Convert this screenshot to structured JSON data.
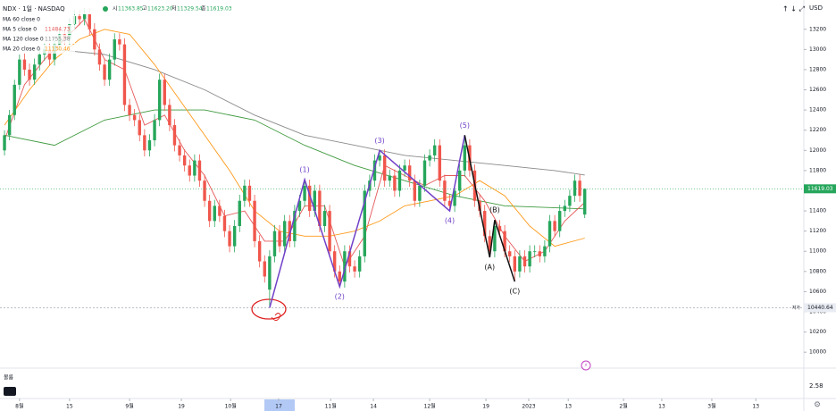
{
  "chart_data": {
    "type": "candlestick",
    "symbol": "NDX · 1일 · NASDAQ",
    "header_values": [
      "시",
      "11363.85",
      "고",
      "11623.20",
      "저",
      "11329.54",
      "종",
      "11619.03"
    ],
    "currency": "USD",
    "xlim": [
      -0.9,
      159.8
    ],
    "xticks": [
      {
        "value": 3,
        "label": "8월"
      },
      {
        "value": 13,
        "label": "15"
      },
      {
        "value": 25,
        "label": "9월"
      },
      {
        "value": 35.35,
        "label": "19"
      },
      {
        "value": 45.2,
        "label": "10월"
      },
      {
        "value": 54.8,
        "label": "17"
      },
      {
        "value": 65.2,
        "label": "11월"
      },
      {
        "value": 73.75,
        "label": "14"
      },
      {
        "value": 85,
        "label": "12월"
      },
      {
        "value": 96.25,
        "label": "19"
      },
      {
        "value": 104.8,
        "label": "2023"
      },
      {
        "value": 112.7,
        "label": "13"
      },
      {
        "value": 123.75,
        "label": "2월"
      },
      {
        "value": 131.4,
        "label": "13"
      },
      {
        "value": 141.4,
        "label": "3월"
      },
      {
        "value": 150.2,
        "label": "13"
      }
    ],
    "ylim": [
      9860,
      13490
    ],
    "yticks": [
      10000,
      10200,
      10400,
      10600,
      10800,
      11000,
      11200,
      11400,
      11600,
      11800,
      12000,
      12200,
      12400,
      12600,
      12800,
      13000,
      13200
    ],
    "grid": false,
    "up_color": "#26a65b",
    "down_color": "#f0564c",
    "ohlc": [
      [
        12000,
        12200,
        11950,
        12150
      ],
      [
        12150,
        12400,
        12100,
        12350
      ],
      [
        12350,
        12700,
        12300,
        12650
      ],
      [
        12650,
        12950,
        12600,
        12900
      ],
      [
        12900,
        12960,
        12740,
        12800
      ],
      [
        12800,
        12860,
        12640,
        12700
      ],
      [
        12700,
        12910,
        12650,
        12850
      ],
      [
        12850,
        13010,
        12790,
        12950
      ],
      [
        12950,
        13060,
        12890,
        13000
      ],
      [
        13000,
        13060,
        12840,
        12900
      ],
      [
        12900,
        13110,
        12840,
        13050
      ],
      [
        13050,
        13210,
        12990,
        13150
      ],
      [
        13150,
        13210,
        13040,
        13100
      ],
      [
        13100,
        13310,
        13040,
        13250
      ],
      [
        13250,
        13390,
        13190,
        13330
      ],
      [
        13330,
        13390,
        13240,
        13300
      ],
      [
        13300,
        13410,
        13240,
        13350
      ],
      [
        13350,
        13410,
        13140,
        13200
      ],
      [
        13200,
        13260,
        12940,
        13000
      ],
      [
        13000,
        13060,
        12790,
        12850
      ],
      [
        12850,
        12910,
        12640,
        12700
      ],
      [
        12700,
        12960,
        12640,
        12900
      ],
      [
        12900,
        13160,
        12840,
        13100
      ],
      [
        13100,
        13160,
        12990,
        13050
      ],
      [
        13050,
        13110,
        12390,
        12450
      ],
      [
        12450,
        12510,
        12290,
        12350
      ],
      [
        12350,
        12410,
        12240,
        12300
      ],
      [
        12300,
        12360,
        12090,
        12150
      ],
      [
        12150,
        12210,
        11940,
        12000
      ],
      [
        12000,
        12160,
        11940,
        12100
      ],
      [
        12100,
        12360,
        12040,
        12300
      ],
      [
        12300,
        12760,
        12240,
        12700
      ],
      [
        12700,
        12760,
        12390,
        12450
      ],
      [
        12450,
        12510,
        12190,
        12250
      ],
      [
        12250,
        12310,
        11990,
        12050
      ],
      [
        12050,
        12110,
        11890,
        11950
      ],
      [
        11950,
        12010,
        11790,
        11850
      ],
      [
        11850,
        11910,
        11690,
        11750
      ],
      [
        11750,
        11960,
        11690,
        11900
      ],
      [
        11900,
        11960,
        11640,
        11700
      ],
      [
        11700,
        11760,
        11440,
        11500
      ],
      [
        11500,
        11560,
        11240,
        11300
      ],
      [
        11300,
        11510,
        11240,
        11450
      ],
      [
        11450,
        11510,
        11290,
        11350
      ],
      [
        11350,
        11410,
        11140,
        11200
      ],
      [
        11200,
        11260,
        10990,
        11050
      ],
      [
        11050,
        11310,
        10990,
        11250
      ],
      [
        11250,
        11560,
        11190,
        11500
      ],
      [
        11500,
        11710,
        11440,
        11650
      ],
      [
        11650,
        11710,
        11440,
        11500
      ],
      [
        11500,
        11560,
        11040,
        11100
      ],
      [
        11100,
        11160,
        10840,
        10900
      ],
      [
        10900,
        10960,
        10690,
        10750
      ],
      [
        10620,
        11010,
        10440.64,
        10950
      ],
      [
        10950,
        11260,
        10890,
        11200
      ],
      [
        11200,
        11260,
        10990,
        11050
      ],
      [
        11050,
        11360,
        10990,
        11300
      ],
      [
        11300,
        11360,
        11040,
        11100
      ],
      [
        11100,
        11460,
        11040,
        11400
      ],
      [
        11400,
        11560,
        11340,
        11500
      ],
      [
        11500,
        11710,
        11440,
        11650
      ],
      [
        11650,
        11710,
        11340,
        11400
      ],
      [
        11400,
        11660,
        11340,
        11600
      ],
      [
        11600,
        11660,
        11190,
        11250
      ],
      [
        11250,
        11460,
        11190,
        11400
      ],
      [
        11400,
        11460,
        10940,
        11000
      ],
      [
        11000,
        11060,
        10740,
        10800
      ],
      [
        10800,
        10860,
        10650,
        10700
      ],
      [
        10700,
        11060,
        10640,
        11000
      ],
      [
        11000,
        11060,
        10790,
        10850
      ],
      [
        10850,
        10910,
        10740,
        10800
      ],
      [
        10800,
        11010,
        10740,
        10950
      ],
      [
        10950,
        11660,
        10890,
        11600
      ],
      [
        11600,
        11760,
        11540,
        11700
      ],
      [
        11700,
        11960,
        11640,
        11900
      ],
      [
        11900,
        12000,
        11840,
        11950
      ],
      [
        11950,
        12010,
        11640,
        11700
      ],
      [
        11700,
        11810,
        11640,
        11750
      ],
      [
        11750,
        11810,
        11540,
        11600
      ],
      [
        11600,
        11860,
        11540,
        11800
      ],
      [
        11800,
        11910,
        11740,
        11850
      ],
      [
        11850,
        11910,
        11640,
        11700
      ],
      [
        11700,
        11760,
        11440,
        11500
      ],
      [
        11500,
        11710,
        11440,
        11650
      ],
      [
        11650,
        11960,
        11590,
        11900
      ],
      [
        11900,
        12010,
        11840,
        11950
      ],
      [
        11950,
        12110,
        11890,
        12050
      ],
      [
        12050,
        12110,
        11640,
        11700
      ],
      [
        11700,
        11760,
        11440,
        11500
      ],
      [
        11500,
        11560,
        11400,
        11450
      ],
      [
        11450,
        11660,
        11390,
        11600
      ],
      [
        11600,
        11860,
        11540,
        11800
      ],
      [
        11800,
        12150,
        11740,
        12050
      ],
      [
        12050,
        12110,
        11740,
        11800
      ],
      [
        11800,
        11860,
        11440,
        11500
      ],
      [
        11500,
        11560,
        11340,
        11400
      ],
      [
        11400,
        11460,
        11090,
        11150
      ],
      [
        11150,
        11210,
        10940,
        11000
      ],
      [
        11000,
        11310,
        10940,
        11250
      ],
      [
        11250,
        11310,
        11140,
        11200
      ],
      [
        11200,
        11260,
        10940,
        11000
      ],
      [
        11000,
        11060,
        10890,
        10950
      ],
      [
        10950,
        11010,
        10700,
        10800
      ],
      [
        10800,
        11010,
        10740,
        10950
      ],
      [
        10950,
        11010,
        10790,
        10850
      ],
      [
        10850,
        11060,
        10790,
        11000
      ],
      [
        11000,
        11060,
        10940,
        11000
      ],
      [
        11000,
        11060,
        10890,
        10950
      ],
      [
        10950,
        11110,
        10890,
        11050
      ],
      [
        11050,
        11360,
        10990,
        11300
      ],
      [
        11300,
        11360,
        11140,
        11200
      ],
      [
        11200,
        11460,
        11140,
        11400
      ],
      [
        11400,
        11510,
        11340,
        11450
      ],
      [
        11450,
        11610,
        11390,
        11550
      ],
      [
        11550,
        11760,
        11490,
        11700
      ],
      [
        11700,
        11760,
        11490,
        11550
      ],
      [
        11363.85,
        11623.2,
        11329.54,
        11619.03
      ]
    ],
    "series": [
      {
        "name": "MA 60 close 0",
        "color": "#3f9a3f",
        "x": [
          0,
          10,
          20,
          30,
          40,
          50,
          60,
          70,
          80,
          90,
          100,
          116
        ],
        "values": [
          12150,
          12050,
          12300,
          12400,
          12400,
          12300,
          12050,
          11850,
          11700,
          11550,
          11450,
          11420
        ]
      },
      {
        "name": "MA 5 close 0",
        "color": "#e5595a",
        "x": [
          0,
          4,
          8,
          12,
          16,
          20,
          24,
          28,
          32,
          36,
          40,
          44,
          48,
          52,
          56,
          60,
          64,
          68,
          72,
          76,
          80,
          84,
          88,
          92,
          96,
          100,
          104,
          108,
          112,
          116
        ],
        "values": [
          12100,
          12650,
          12900,
          13100,
          13300,
          12900,
          12800,
          12250,
          12350,
          12000,
          11750,
          11350,
          11400,
          11100,
          11100,
          11450,
          11450,
          10850,
          11150,
          11850,
          11750,
          11650,
          11750,
          11750,
          11500,
          11150,
          10900,
          11000,
          11300,
          11484.73
        ]
      },
      {
        "name": "MA 120 close 0",
        "color": "#8a8a8a",
        "x": [
          10,
          20,
          30,
          40,
          50,
          60,
          70,
          80,
          90,
          100,
          110,
          116
        ],
        "values": [
          13000,
          12950,
          12800,
          12600,
          12350,
          12150,
          12050,
          11950,
          11900,
          11850,
          11800,
          11755.38
        ]
      },
      {
        "name": "MA 20 close 0",
        "color": "#ff9a1a",
        "x": [
          0,
          5,
          10,
          15,
          20,
          25,
          30,
          35,
          40,
          45,
          50,
          55,
          60,
          65,
          70,
          75,
          80,
          85,
          90,
          95,
          100,
          105,
          110,
          116
        ],
        "values": [
          12250,
          12600,
          12900,
          13100,
          13200,
          13150,
          12850,
          12500,
          12150,
          11800,
          11400,
          11200,
          11150,
          11150,
          11200,
          11300,
          11450,
          11500,
          11550,
          11700,
          11550,
          11250,
          11050,
          11130.46
        ]
      }
    ],
    "waves": [
      {
        "color": "#7040c8",
        "x": [
          53,
          60,
          67,
          75,
          89,
          92
        ],
        "values": [
          10440.64,
          11710,
          10650,
          12000,
          11400,
          12150
        ],
        "labels": [
          null,
          "(1)",
          "(2)",
          "(3)",
          "(4)",
          "(5)"
        ]
      },
      {
        "color": "#111111",
        "x": [
          92,
          97,
          98,
          102
        ],
        "values": [
          12150,
          10940,
          11310,
          10700
        ],
        "labels": [
          null,
          "(A)",
          "(B)",
          "(C)"
        ]
      }
    ],
    "low_marker": {
      "label": "저가",
      "value": 10440.64
    },
    "volume_pane": {
      "label": "볼륨",
      "tick": 2.58
    }
  }
}
